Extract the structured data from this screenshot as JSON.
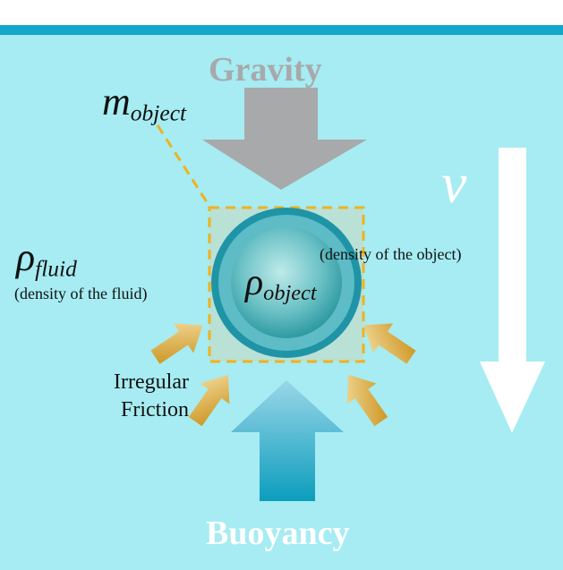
{
  "labels": {
    "gravity": "Gravity",
    "buoyancy": "Buoyancy",
    "mass_symbol": "m",
    "mass_subscript": "object",
    "fluid_density_symbol": "ρ",
    "fluid_density_subscript": "fluid",
    "fluid_density_desc": "(density of the fluid)",
    "object_density_symbol": "ρ",
    "object_density_subscript": "object",
    "object_density_desc": "(density of the object)",
    "velocity_symbol": "ν",
    "friction_line1": "Irregular",
    "friction_line2": "Friction"
  },
  "colors": {
    "background": "#a6ecf2",
    "top_bar": "#12a7cb",
    "gravity_arrow": "#a7a9ab",
    "buoyancy_arrow": "#1aa6c6",
    "velocity_arrow": "#ffffff",
    "friction_arrow": "#d8a638",
    "dashed_box": "#efb21f",
    "ball": "#3aa8ae"
  }
}
